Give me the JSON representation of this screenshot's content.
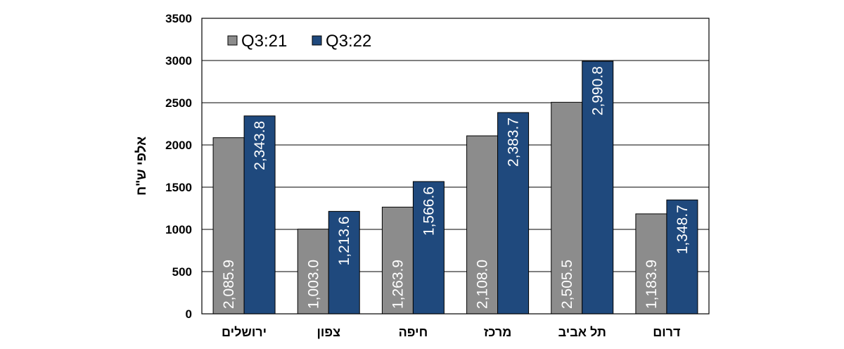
{
  "chart_data": {
    "type": "bar",
    "title": "",
    "xlabel": "",
    "ylabel": "אלפי ש\"ח",
    "ylim": [
      0,
      3500
    ],
    "yticks": [
      0,
      500,
      1000,
      1500,
      2000,
      2500,
      3000,
      3500
    ],
    "grid": true,
    "legend_position": "top-left",
    "categories": [
      "ירושלים",
      "צפון",
      "חיפה",
      "מרכז",
      "תל אביב",
      "דרום"
    ],
    "series": [
      {
        "name": "Q3:21",
        "color": "#8c8c8c",
        "values": [
          2085.9,
          1003.0,
          1263.9,
          2108.0,
          2505.5,
          1183.9
        ],
        "labels": [
          "2,085.9",
          "1,003.0",
          "1,263.9",
          "2,108.0",
          "2,505.5",
          "1,183.9"
        ]
      },
      {
        "name": "Q3:22",
        "color": "#1f497d",
        "values": [
          2343.8,
          1213.6,
          1566.6,
          2383.7,
          2990.8,
          1348.7
        ],
        "labels": [
          "2,343.8",
          "1,213.6",
          "1,566.6",
          "2,383.7",
          "2,990.8",
          "1,348.7"
        ]
      }
    ]
  }
}
